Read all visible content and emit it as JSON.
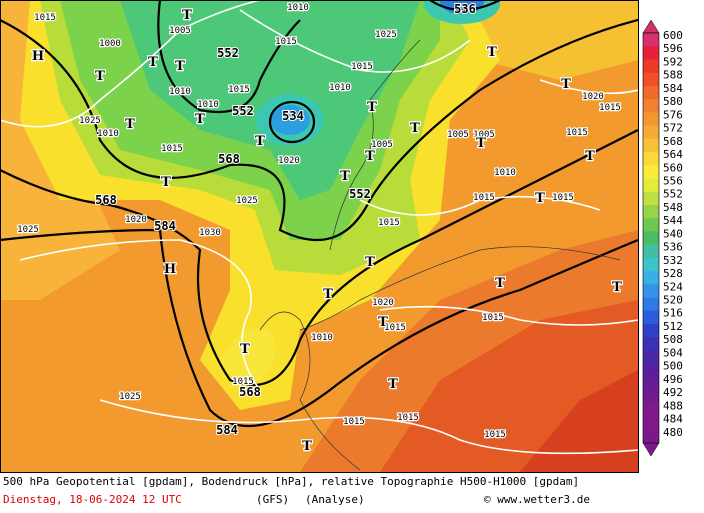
{
  "map": {
    "contour_labels": [
      "536",
      "552",
      "552",
      "534",
      "568",
      "568",
      "584",
      "552",
      "568",
      "584"
    ],
    "isobar_labels": [
      "1015",
      "1005",
      "1010",
      "1025",
      "1015",
      "1000",
      "1015",
      "1010",
      "1010",
      "1010",
      "1015",
      "1025",
      "1010",
      "1015",
      "1020",
      "1005",
      "1005",
      "1005",
      "1010",
      "1015",
      "1015",
      "1020",
      "1025",
      "1030",
      "1025",
      "1015",
      "1020",
      "1015",
      "1015",
      "1010",
      "1015",
      "1025",
      "1015",
      "1015",
      "1015",
      "1020",
      "1015",
      "1015"
    ],
    "pressure_centers": [
      "H",
      "H",
      "T",
      "T",
      "T",
      "T",
      "T",
      "T",
      "T",
      "T",
      "T",
      "T",
      "T",
      "T",
      "T",
      "T",
      "T",
      "T",
      "T",
      "T",
      "T",
      "T",
      "T",
      "T",
      "T",
      "T",
      "T"
    ]
  },
  "colorbar": {
    "levels": [
      600,
      596,
      592,
      588,
      584,
      580,
      576,
      572,
      568,
      564,
      560,
      556,
      552,
      548,
      544,
      540,
      536,
      532,
      528,
      524,
      520,
      516,
      512,
      508,
      504,
      500,
      496,
      492,
      488,
      484,
      480
    ]
  },
  "footer": {
    "description": "500 hPa Geopotential [gpdam], Bodendruck [hPa], relative Topographie H500-H1000 [gpdam]",
    "date": "Dienstag, 18-06-2024  12 UTC",
    "model": "(GFS)",
    "run": "(Analyse)",
    "credit": "© www.wetter3.de"
  }
}
